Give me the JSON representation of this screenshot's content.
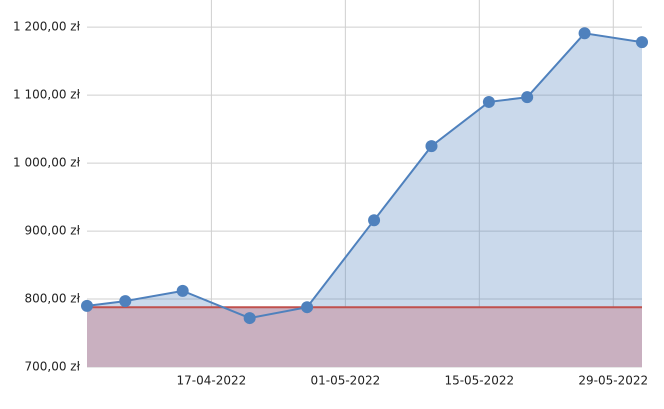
{
  "chart_data": {
    "type": "area",
    "x": [
      "04-04-2022",
      "08-04-2022",
      "14-04-2022",
      "21-04-2022",
      "27-04-2022",
      "04-05-2022",
      "10-05-2022",
      "16-05-2022",
      "20-05-2022",
      "26-05-2022",
      "01-06-2022"
    ],
    "series": [
      {
        "color": "#4f81bd",
        "values": [
          790,
          797,
          812,
          772,
          788,
          916,
          1025,
          1090,
          1097,
          1191,
          1178
        ]
      }
    ],
    "reference_line": {
      "value": 788,
      "color": "#c0504d"
    },
    "xlim": [
      "04-04-2022",
      "01-06-2022"
    ],
    "xticks": [
      "17-04-2022",
      "01-05-2022",
      "15-05-2022",
      "29-05-2022"
    ],
    "ylim": [
      700,
      1240
    ],
    "yticks": [
      {
        "value": 700,
        "label": "700,00 zł"
      },
      {
        "value": 800,
        "label": "800,00 zł"
      },
      {
        "value": 900,
        "label": "900,00 zł"
      },
      {
        "value": 1000,
        "label": "1 000,00 zł"
      },
      {
        "value": 1100,
        "label": "1 100,00 zł"
      },
      {
        "value": 1200,
        "label": "1 200,00 zł"
      }
    ],
    "grid": true
  }
}
